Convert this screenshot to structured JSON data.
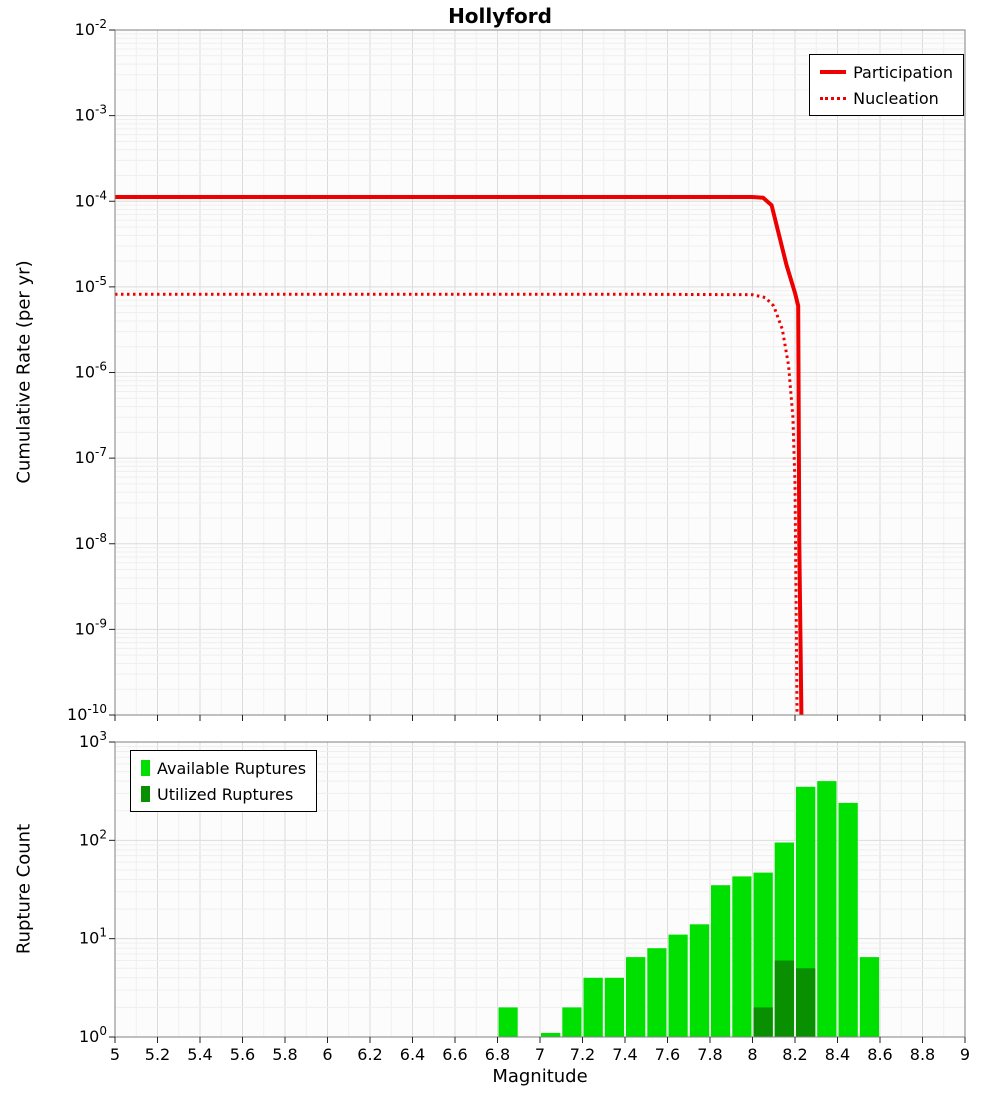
{
  "figure": {
    "title": "Hollyford"
  },
  "chart_data": [
    {
      "type": "line",
      "title": "Hollyford",
      "xlabel": "",
      "ylabel": "Cumulative Rate (per yr)",
      "x_range": [
        5,
        9
      ],
      "y_scale": "log",
      "y_exp_range": [
        -10,
        -2
      ],
      "y_ticks_exp": [
        -2,
        -3,
        -4,
        -5,
        -6,
        -7,
        -8,
        -9,
        -10
      ],
      "x_ticks": [
        5,
        5.2,
        5.4,
        5.6,
        5.8,
        6,
        6.2,
        6.4,
        6.6,
        6.8,
        7,
        7.2,
        7.4,
        7.6,
        7.8,
        8,
        8.2,
        8.4,
        8.6,
        8.8,
        9
      ],
      "x_tick_labels": null,
      "grid": true,
      "legend": {
        "position": "top-right",
        "entries": [
          {
            "label": "Participation",
            "swatch": "line-solid",
            "color": "#ee0000"
          },
          {
            "label": "Nucleation",
            "swatch": "line-dotted",
            "color": "#ee0000"
          }
        ]
      },
      "series": [
        {
          "name": "Participation",
          "color": "#ee0000",
          "line": "solid",
          "width": 4,
          "points": [
            [
              5,
              0.000112
            ],
            [
              7.0,
              0.000112
            ],
            [
              8.0,
              0.000112
            ],
            [
              8.05,
              0.00011
            ],
            [
              8.09,
              9e-05
            ],
            [
              8.12,
              4.5e-05
            ],
            [
              8.16,
              1.8e-05
            ],
            [
              8.2,
              8.5e-06
            ],
            [
              8.215,
              6e-06
            ],
            [
              8.22,
              1e-08
            ],
            [
              8.23,
              1e-10
            ]
          ]
        },
        {
          "name": "Nucleation",
          "color": "#ee0000",
          "line": "dotted",
          "width": 3,
          "points": [
            [
              5,
              8.2e-06
            ],
            [
              7.5,
              8.2e-06
            ],
            [
              8.0,
              8.1e-06
            ],
            [
              8.06,
              7.5e-06
            ],
            [
              8.1,
              6e-06
            ],
            [
              8.14,
              3.2e-06
            ],
            [
              8.17,
              1.2e-06
            ],
            [
              8.19,
              3e-07
            ],
            [
              8.2,
              5e-08
            ],
            [
              8.21,
              1e-10
            ]
          ]
        }
      ]
    },
    {
      "type": "bar",
      "title": "",
      "xlabel": "Magnitude",
      "ylabel": "Rupture Count",
      "x_range": [
        5,
        9
      ],
      "y_scale": "log",
      "y_exp_range": [
        0,
        3
      ],
      "y_ticks_exp": [
        0,
        1,
        2,
        3
      ],
      "x_ticks": [
        5,
        5.2,
        5.4,
        5.6,
        5.8,
        6,
        6.2,
        6.4,
        6.6,
        6.8,
        7,
        7.2,
        7.4,
        7.6,
        7.8,
        8,
        8.2,
        8.4,
        8.6,
        8.8,
        9
      ],
      "x_tick_labels": [
        "5",
        "5.2",
        "5.4",
        "5.6",
        "5.8",
        "6",
        "6.2",
        "6.4",
        "6.6",
        "6.8",
        "7",
        "7.2",
        "7.4",
        "7.6",
        "7.8",
        "8",
        "8.2",
        "8.4",
        "8.6",
        "8.8",
        "9"
      ],
      "grid": true,
      "legend": {
        "position": "top-left",
        "entries": [
          {
            "label": "Available Ruptures",
            "swatch": "rect",
            "color": "#00e000"
          },
          {
            "label": "Utilized Ruptures",
            "swatch": "rect",
            "color": "#089000"
          }
        ]
      },
      "series": [
        {
          "name": "Available Ruptures",
          "color": "#00e000",
          "bin_width": 0.1,
          "bars": [
            [
              6.85,
              2
            ],
            [
              7.05,
              1.1
            ],
            [
              7.15,
              2
            ],
            [
              7.25,
              4
            ],
            [
              7.35,
              4
            ],
            [
              7.45,
              6.5
            ],
            [
              7.55,
              8
            ],
            [
              7.65,
              11
            ],
            [
              7.75,
              14
            ],
            [
              7.85,
              35
            ],
            [
              7.95,
              43
            ],
            [
              8.05,
              47
            ],
            [
              8.15,
              95
            ],
            [
              8.25,
              350
            ],
            [
              8.35,
              400
            ],
            [
              8.45,
              240
            ],
            [
              8.55,
              6.5
            ]
          ]
        },
        {
          "name": "Utilized Ruptures",
          "color": "#089000",
          "bin_width": 0.1,
          "bars": [
            [
              8.05,
              2
            ],
            [
              8.15,
              6
            ],
            [
              8.25,
              5
            ]
          ]
        }
      ]
    }
  ]
}
